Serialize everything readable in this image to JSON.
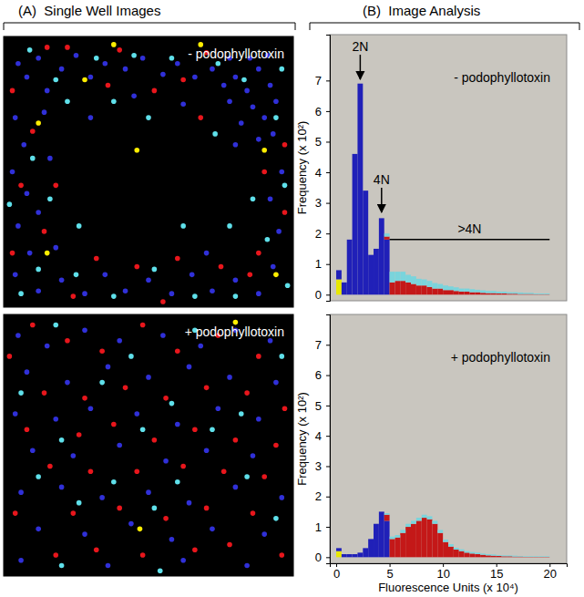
{
  "panel_titles": [
    "(A)  Single Well Images",
    "(B)  Image Analysis"
  ],
  "chart_data": [
    {
      "type": "scatter",
      "title": "- podophyllotoxin",
      "tick_labels": false,
      "xlim": [
        0,
        100
      ],
      "ylim": [
        0,
        100
      ],
      "series": [
        {
          "color": "#3030d8",
          "x": [
            5,
            8,
            12,
            15,
            20,
            25,
            30,
            35,
            42,
            48,
            55,
            60,
            66,
            72,
            78,
            80,
            84,
            88,
            92,
            86,
            90,
            94,
            82,
            78,
            88,
            93,
            80,
            85,
            91,
            76,
            4,
            7,
            3,
            8,
            5,
            9,
            4,
            12,
            20,
            28,
            35,
            42,
            50,
            58,
            65,
            72,
            80,
            88,
            93,
            95,
            92,
            96,
            14,
            16,
            12,
            18,
            45,
            30,
            62,
            70
          ],
          "values": [
            90,
            85,
            92,
            80,
            88,
            93,
            85,
            90,
            88,
            92,
            86,
            90,
            85,
            88,
            92,
            85,
            80,
            88,
            82,
            74,
            70,
            76,
            68,
            76,
            62,
            64,
            60,
            92,
            93,
            82,
            70,
            60,
            50,
            42,
            30,
            20,
            12,
            6,
            10,
            5,
            12,
            6,
            10,
            5,
            12,
            6,
            10,
            5,
            15,
            28,
            40,
            50,
            72,
            55,
            35,
            22,
            78,
            70,
            75,
            20
          ]
        },
        {
          "color": "#e8161c",
          "x": [
            3,
            10,
            6,
            14,
            3,
            22,
            40,
            52,
            70,
            62,
            97,
            90,
            97,
            88,
            75,
            60,
            46,
            32,
            24,
            55,
            85,
            18,
            36,
            68,
            15
          ],
          "values": [
            80,
            65,
            45,
            28,
            20,
            96,
            95,
            80,
            94,
            84,
            60,
            50,
            35,
            20,
            15,
            18,
            15,
            18,
            4,
            2,
            12,
            45,
            82,
            70,
            96
          ]
        },
        {
          "color": "#5fe0ea",
          "x": [
            9,
            18,
            32,
            45,
            58,
            74,
            96,
            94,
            83,
            73,
            22,
            10,
            2,
            12,
            25,
            38,
            52,
            66,
            80,
            91,
            97,
            86,
            26,
            62,
            38,
            50,
            6,
            98,
            78,
            16
          ],
          "values": [
            95,
            84,
            92,
            93,
            92,
            90,
            88,
            70,
            84,
            64,
            76,
            55,
            38,
            14,
            12,
            4,
            14,
            4,
            4,
            25,
            45,
            40,
            30,
            30,
            76,
            70,
            5,
            8,
            30,
            40
          ]
        },
        {
          "color": "#ffee00",
          "x": [
            38,
            12,
            28,
            46,
            90,
            94,
            15,
            68
          ],
          "values": [
            97,
            68,
            84,
            58,
            58,
            12,
            20,
            97
          ]
        }
      ]
    },
    {
      "type": "scatter",
      "title": "+ podophyllotoxin",
      "tick_labels": false,
      "xlim": [
        0,
        100
      ],
      "ylim": [
        0,
        100
      ],
      "series": [
        {
          "color": "#3030d8",
          "x": [
            5,
            15,
            28,
            40,
            55,
            68,
            80,
            92,
            8,
            22,
            36,
            50,
            64,
            78,
            94,
            4,
            18,
            30,
            46,
            60,
            74,
            88,
            10,
            24,
            40,
            56,
            70,
            86,
            6,
            20,
            34,
            50,
            64,
            80,
            96,
            12,
            28,
            44,
            58,
            72,
            90,
            6,
            36,
            62,
            84
          ],
          "values": [
            92,
            88,
            94,
            90,
            92,
            88,
            94,
            90,
            78,
            74,
            80,
            76,
            80,
            76,
            74,
            62,
            60,
            64,
            62,
            58,
            64,
            60,
            48,
            46,
            50,
            44,
            48,
            46,
            32,
            34,
            30,
            32,
            28,
            34,
            30,
            18,
            16,
            20,
            14,
            18,
            16,
            6,
            4,
            6,
            4
          ]
        },
        {
          "color": "#e8161c",
          "x": [
            10,
            22,
            34,
            48,
            60,
            74,
            88,
            2,
            14,
            28,
            42,
            56,
            70,
            84,
            97,
            8,
            26,
            38,
            52,
            66,
            80,
            94,
            16,
            30,
            46,
            62,
            76,
            90,
            4,
            24,
            40,
            56,
            70,
            86,
            18,
            32,
            48,
            66,
            78,
            96
          ],
          "values": [
            96,
            90,
            86,
            96,
            86,
            92,
            84,
            84,
            70,
            68,
            72,
            68,
            72,
            70,
            64,
            56,
            54,
            58,
            52,
            56,
            52,
            50,
            42,
            40,
            40,
            42,
            40,
            38,
            24,
            24,
            26,
            22,
            26,
            24,
            8,
            10,
            8,
            10,
            12,
            8
          ]
        },
        {
          "color": "#5fe0ea",
          "x": [
            18,
            44,
            66,
            96,
            6,
            34,
            58,
            82,
            20,
            48,
            72,
            12,
            38,
            60,
            84,
            26,
            52,
            94,
            20,
            54
          ],
          "values": [
            96,
            84,
            94,
            84,
            70,
            74,
            66,
            62,
            52,
            56,
            56,
            38,
            36,
            36,
            38,
            28,
            26,
            22,
            4,
            2
          ]
        },
        {
          "color": "#ffee00",
          "x": [
            80,
            47
          ],
          "values": [
            97,
            18
          ]
        }
      ]
    },
    {
      "type": "histogram",
      "title": "- podophyllotoxin",
      "y_label": "Frequency (x 10²)",
      "stacked": true,
      "tick_labels": "y",
      "xlim": [
        -0.6,
        21.6
      ],
      "ylim": [
        -0.2,
        8.5
      ],
      "yticks": [
        0,
        1,
        2,
        3,
        4,
        5,
        6,
        7
      ],
      "bins": [
        0,
        0.5,
        1,
        1.5,
        2,
        2.5,
        3,
        3.5,
        4,
        4.5,
        5,
        5.5,
        6,
        6.5,
        7,
        7.5,
        8,
        8.5,
        9,
        9.5,
        10,
        10.5,
        11,
        11.5,
        12,
        12.5,
        13,
        13.5,
        14,
        14.5,
        15,
        15.5,
        16,
        16.5,
        17,
        17.5,
        18,
        18.5,
        19,
        19.5,
        20
      ],
      "series": [
        {
          "color": "#e8e800",
          "values": [
            0.5,
            0,
            0,
            0,
            0,
            0,
            0,
            0,
            0,
            0,
            0,
            0,
            0,
            0,
            0,
            0,
            0,
            0,
            0,
            0,
            0,
            0,
            0,
            0,
            0,
            0,
            0,
            0,
            0,
            0,
            0,
            0,
            0,
            0,
            0,
            0,
            0,
            0,
            0,
            0
          ]
        },
        {
          "color": "#2020b8",
          "values": [
            0.3,
            0.4,
            1.8,
            4.6,
            6.9,
            3.4,
            1.3,
            1.5,
            2.5,
            1.8,
            0,
            0,
            0,
            0,
            0,
            0,
            0,
            0,
            0,
            0,
            0,
            0,
            0,
            0,
            0,
            0,
            0,
            0,
            0,
            0,
            0,
            0,
            0,
            0,
            0,
            0,
            0,
            0,
            0,
            0
          ]
        },
        {
          "color": "#c41818",
          "values": [
            0,
            0,
            0,
            0,
            0,
            0,
            0,
            0,
            0,
            0.1,
            0.4,
            0.45,
            0.45,
            0.4,
            0.35,
            0.3,
            0.3,
            0.25,
            0.2,
            0.2,
            0.15,
            0.15,
            0.12,
            0.1,
            0.1,
            0.08,
            0.08,
            0.06,
            0.05,
            0.05,
            0.04,
            0.04,
            0.03,
            0.03,
            0.02,
            0.02,
            0.02,
            0.01,
            0.01,
            0.01
          ]
        },
        {
          "color": "#7ad4dc",
          "values": [
            0,
            0,
            0,
            0,
            0,
            0,
            0,
            0,
            0,
            0.1,
            0.35,
            0.3,
            0.3,
            0.25,
            0.25,
            0.22,
            0.2,
            0.2,
            0.18,
            0.15,
            0.15,
            0.12,
            0.12,
            0.1,
            0.1,
            0.1,
            0.08,
            0.08,
            0.07,
            0.07,
            0.06,
            0.06,
            0.05,
            0.05,
            0.05,
            0.04,
            0.04,
            0.03,
            0.03,
            0.03
          ]
        }
      ],
      "annotations": [
        {
          "text": "2N",
          "x": 2.25,
          "y": 6.95
        },
        {
          "text": "4N",
          "x": 4.25,
          "y": 2.6
        },
        {
          "text": ">4N",
          "x": 5,
          "x2": 20,
          "y": 1.8
        }
      ]
    },
    {
      "type": "histogram",
      "title": "+ podophyllotoxin",
      "y_label": "Frequency (x 10²)",
      "x_label": "Fluorescence Units (x 10⁴)",
      "stacked": true,
      "xlim": [
        -0.6,
        21.6
      ],
      "ylim": [
        -0.2,
        8.0
      ],
      "xticks": [
        0,
        5,
        10,
        15,
        20
      ],
      "yticks": [
        0,
        1,
        2,
        3,
        4,
        5,
        6,
        7
      ],
      "bins": [
        0,
        0.5,
        1,
        1.5,
        2,
        2.5,
        3,
        3.5,
        4,
        4.5,
        5,
        5.5,
        6,
        6.5,
        7,
        7.5,
        8,
        8.5,
        9,
        9.5,
        10,
        10.5,
        11,
        11.5,
        12,
        12.5,
        13,
        13.5,
        14,
        14.5,
        15,
        15.5,
        16,
        16.5,
        17,
        17.5,
        18,
        18.5,
        19,
        19.5,
        20
      ],
      "series": [
        {
          "color": "#e8e800",
          "values": [
            0.2,
            0,
            0,
            0,
            0,
            0,
            0,
            0,
            0,
            0,
            0,
            0,
            0,
            0,
            0,
            0,
            0,
            0,
            0,
            0,
            0,
            0,
            0,
            0,
            0,
            0,
            0,
            0,
            0,
            0,
            0,
            0,
            0,
            0,
            0,
            0,
            0,
            0,
            0,
            0
          ]
        },
        {
          "color": "#2020b8",
          "values": [
            0.1,
            0.1,
            0.1,
            0.1,
            0.15,
            0.3,
            0.6,
            1.1,
            1.5,
            1.2,
            0,
            0,
            0,
            0,
            0,
            0,
            0,
            0,
            0,
            0,
            0,
            0,
            0,
            0,
            0,
            0,
            0,
            0,
            0,
            0,
            0,
            0,
            0,
            0,
            0,
            0,
            0,
            0,
            0,
            0
          ]
        },
        {
          "color": "#c41818",
          "values": [
            0,
            0,
            0,
            0,
            0,
            0,
            0,
            0,
            0,
            0.2,
            0.6,
            0.65,
            0.8,
            1.0,
            1.1,
            1.2,
            1.3,
            1.25,
            1.1,
            0.8,
            0.5,
            0.35,
            0.25,
            0.2,
            0.15,
            0.12,
            0.1,
            0.08,
            0.06,
            0.05,
            0.04,
            0.03,
            0.03,
            0.02,
            0.02,
            0.01,
            0.01,
            0.01,
            0.01,
            0.01
          ]
        },
        {
          "color": "#7ad4dc",
          "values": [
            0,
            0,
            0,
            0,
            0,
            0,
            0,
            0,
            0,
            0.05,
            0.08,
            0.08,
            0.1,
            0.1,
            0.1,
            0.1,
            0.1,
            0.1,
            0.1,
            0.1,
            0.08,
            0.08,
            0.06,
            0.06,
            0.05,
            0.05,
            0.05,
            0.04,
            0.04,
            0.04,
            0.03,
            0.03,
            0.03,
            0.03,
            0.02,
            0.02,
            0.02,
            0.02,
            0.02,
            0.02
          ]
        }
      ]
    }
  ]
}
